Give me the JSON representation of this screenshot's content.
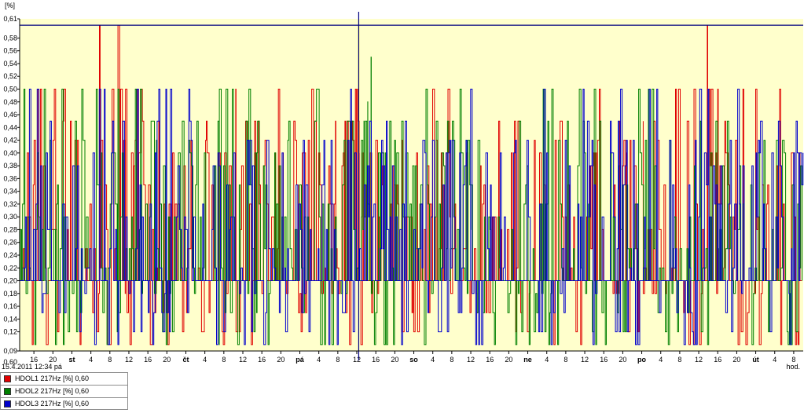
{
  "chart_data": {
    "type": "line",
    "ylabel": "[%]",
    "xlabel": "hod.",
    "ylim": [
      0.09,
      0.61
    ],
    "y_bottom_label": "0,60",
    "y_ticks": [
      "0,61",
      "0,58",
      "0,56",
      "0,54",
      "0,52",
      "0,50",
      "0,48",
      "0,46",
      "0,44",
      "0,42",
      "0,40",
      "0,38",
      "0,36",
      "0,34",
      "0,32",
      "0,30",
      "0,28",
      "0,26",
      "0,24",
      "0,22",
      "0,20",
      "0,18",
      "0,16",
      "0,14",
      "0,12",
      "0,09"
    ],
    "x_range_hours": [
      13,
      178
    ],
    "x_ticks": [
      {
        "h": 16,
        "label": "16"
      },
      {
        "h": 20,
        "label": "20"
      },
      {
        "h": 24,
        "label": "st",
        "bold": true
      },
      {
        "h": 28,
        "label": "4"
      },
      {
        "h": 32,
        "label": "8"
      },
      {
        "h": 36,
        "label": "12"
      },
      {
        "h": 40,
        "label": "16"
      },
      {
        "h": 44,
        "label": "20"
      },
      {
        "h": 48,
        "label": "čt",
        "bold": true
      },
      {
        "h": 52,
        "label": "4"
      },
      {
        "h": 56,
        "label": "8"
      },
      {
        "h": 60,
        "label": "12"
      },
      {
        "h": 64,
        "label": "16"
      },
      {
        "h": 68,
        "label": "20"
      },
      {
        "h": 72,
        "label": "pá",
        "bold": true
      },
      {
        "h": 76,
        "label": "4"
      },
      {
        "h": 80,
        "label": "8"
      },
      {
        "h": 84,
        "label": "12"
      },
      {
        "h": 88,
        "label": "16"
      },
      {
        "h": 92,
        "label": "20"
      },
      {
        "h": 96,
        "label": "so",
        "bold": true
      },
      {
        "h": 100,
        "label": "4"
      },
      {
        "h": 104,
        "label": "8"
      },
      {
        "h": 108,
        "label": "12"
      },
      {
        "h": 112,
        "label": "16"
      },
      {
        "h": 116,
        "label": "20"
      },
      {
        "h": 120,
        "label": "ne",
        "bold": true
      },
      {
        "h": 124,
        "label": "4"
      },
      {
        "h": 128,
        "label": "8"
      },
      {
        "h": 132,
        "label": "12"
      },
      {
        "h": 136,
        "label": "16"
      },
      {
        "h": 140,
        "label": "20"
      },
      {
        "h": 144,
        "label": "po",
        "bold": true
      },
      {
        "h": 148,
        "label": "4"
      },
      {
        "h": 152,
        "label": "8"
      },
      {
        "h": 156,
        "label": "12"
      },
      {
        "h": 160,
        "label": "16"
      },
      {
        "h": 164,
        "label": "20"
      },
      {
        "h": 168,
        "label": "út",
        "bold": true
      },
      {
        "h": 172,
        "label": "4"
      },
      {
        "h": 176,
        "label": "8"
      }
    ],
    "limit_line": 0.6,
    "cursor_hour": 84.4,
    "series": [
      {
        "name": "HDOL1 217Hz [%] 0,60",
        "color": "#e00000",
        "seed": 11,
        "spikes": [
          [
            16.8,
            0.5
          ],
          [
            29.8,
            0.6
          ],
          [
            33.7,
            0.6
          ],
          [
            35.3,
            0.5
          ],
          [
            37.6,
            0.5
          ],
          [
            42.3,
            0.45
          ],
          [
            52.3,
            0.45
          ],
          [
            58.5,
            0.5
          ],
          [
            63.3,
            0.45
          ],
          [
            66.8,
            0.4
          ],
          [
            68.5,
            0.4
          ],
          [
            79.5,
            0.45
          ],
          [
            81.5,
            0.45
          ],
          [
            84.2,
            0.45
          ],
          [
            134.3,
            0.4
          ],
          [
            139.3,
            0.45
          ],
          [
            140.8,
            0.4
          ],
          [
            144.3,
            0.45
          ],
          [
            155.0,
            0.5
          ],
          [
            157.8,
            0.6
          ],
          [
            160.0,
            0.5
          ],
          [
            161.5,
            0.45
          ],
          [
            175.5,
            0.4
          ]
        ]
      },
      {
        "name": "HDOL2 217Hz [%] 0,60",
        "color": "#008000",
        "seed": 23,
        "spikes": [
          [
            87.0,
            0.55
          ],
          [
            86.3,
            0.48
          ],
          [
            85.5,
            0.45
          ],
          [
            84.9,
            0.3
          ],
          [
            33.7,
            0.5
          ],
          [
            63.0,
            0.4
          ],
          [
            55.0,
            0.1
          ],
          [
            108.0,
            0.28
          ]
        ]
      },
      {
        "name": "HDOL3 217Hz [%] 0,60",
        "color": "#0000cc",
        "seed": 5,
        "spikes": []
      }
    ]
  },
  "legend": [
    {
      "label": "HDOL1  217Hz [%] 0,60",
      "color": "#e00000"
    },
    {
      "label": "HDOL2  217Hz [%] 0,60",
      "color": "#008000"
    },
    {
      "label": "HDOL3  217Hz [%] 0,60",
      "color": "#0000cc"
    }
  ],
  "status_text": "15.4.2011 12:34 pá",
  "colors": {
    "plot_bg": "#ffffcc",
    "axis": "#000000",
    "limit": "#000080",
    "cursor_yellow": "#ffff00"
  }
}
